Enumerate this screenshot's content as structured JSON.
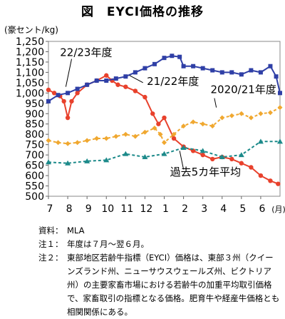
{
  "title": "図　EYCI価格の推移",
  "unit_label": "(豪セント/kg)",
  "notes": [
    {
      "label": "資料：",
      "text": "MLA"
    },
    {
      "label": "注１：",
      "text": "年度は７月～翌６月。"
    },
    {
      "label": "注２：",
      "text": "東部地区若齢牛指標（EYCI）価格は、東部３州（クイーンズランド州、ニューサウスウェールズ州、ビクトリア州）の主要家畜市場における若齢牛の加重平均取引価格で、家畜取引の指標となる価格。肥育牛や経産牛価格とも相関関係にある。"
    }
  ],
  "chart_data": {
    "type": "line",
    "ylim": [
      500,
      1250
    ],
    "yticks": [
      500,
      550,
      600,
      650,
      700,
      750,
      800,
      850,
      900,
      950,
      1000,
      1050,
      1100,
      1150,
      1200,
      1250
    ],
    "ytick_labels": [
      "500",
      "550",
      "600",
      "650",
      "700",
      "750",
      "800",
      "850",
      "900",
      "950",
      "1,000",
      "1,050",
      "1,100",
      "1,150",
      "1,200",
      "1,250"
    ],
    "xlim": [
      0,
      12
    ],
    "xticks": [
      0,
      1,
      2,
      3,
      4,
      5,
      6,
      7,
      8,
      9,
      10,
      11
    ],
    "xtick_labels": [
      "7",
      "8",
      "9",
      "10",
      "11",
      "12",
      "1",
      "2",
      "3",
      "4",
      "5",
      "6"
    ],
    "xunit": "(月)",
    "series": [
      {
        "name": "22/23年度",
        "color": "#e8412c",
        "marker": "circle",
        "x": [
          0.0,
          0.3,
          0.6,
          0.8,
          1.0,
          1.2,
          1.5,
          2.0,
          2.5,
          3.0,
          3.3,
          3.6,
          4.0,
          4.5,
          5.0,
          5.4,
          5.7,
          6.0,
          6.5,
          7.0,
          7.5,
          8.0,
          8.5,
          9.0,
          9.5,
          10.0,
          10.5,
          11.0,
          11.5,
          11.9
        ],
        "y": [
          1015,
          1000,
          985,
          960,
          880,
          960,
          1000,
          1040,
          1060,
          1085,
          1060,
          1040,
          1030,
          1010,
          980,
          900,
          850,
          880,
          780,
          740,
          720,
          700,
          680,
          690,
          680,
          660,
          640,
          600,
          575,
          560
        ]
      },
      {
        "name": "21/22年度",
        "color": "#2f3fa6",
        "marker": "square",
        "x": [
          0.0,
          0.5,
          1.0,
          1.5,
          2.0,
          2.5,
          3.0,
          3.5,
          4.0,
          4.5,
          5.0,
          5.5,
          6.0,
          6.4,
          6.8,
          7.0,
          7.5,
          8.0,
          8.5,
          9.0,
          9.5,
          10.0,
          10.5,
          11.0,
          11.5,
          11.8,
          12.0
        ],
        "y": [
          960,
          990,
          1000,
          1020,
          1040,
          1060,
          1060,
          1070,
          1080,
          1100,
          1120,
          1140,
          1170,
          1180,
          1175,
          1130,
          1130,
          1120,
          1110,
          1100,
          1100,
          1090,
          1110,
          1100,
          1130,
          1080,
          1000
        ]
      },
      {
        "name": "2020/21年度",
        "color": "#f0a830",
        "marker": "diamond",
        "x": [
          0.0,
          0.5,
          1.0,
          1.5,
          2.0,
          2.5,
          3.0,
          3.5,
          4.0,
          4.5,
          5.0,
          5.5,
          5.8,
          6.0,
          6.5,
          7.0,
          7.5,
          8.0,
          8.5,
          9.0,
          9.5,
          10.0,
          10.5,
          11.0,
          11.5,
          12.0
        ],
        "y": [
          770,
          760,
          755,
          760,
          770,
          780,
          780,
          790,
          800,
          790,
          810,
          830,
          800,
          760,
          800,
          840,
          860,
          850,
          840,
          880,
          890,
          900,
          880,
          900,
          905,
          930
        ]
      },
      {
        "name": "過去5カ年平均",
        "color": "#1c8a8a",
        "marker": "triangle",
        "x": [
          0,
          1,
          2,
          3,
          4,
          5,
          6,
          7,
          8,
          9,
          10,
          11,
          12
        ],
        "y": [
          665,
          660,
          670,
          675,
          705,
          690,
          705,
          735,
          720,
          690,
          700,
          765,
          765
        ]
      }
    ],
    "annotations": [
      {
        "text": "22/23年度",
        "x": 0.6,
        "y": 1180
      },
      {
        "text": "21/22年度",
        "x": 5.1,
        "y": 1040
      },
      {
        "text": "2020/21年度",
        "x": 8.4,
        "y": 1000
      },
      {
        "text": "過去5カ年平均",
        "x": 6.3,
        "y": 600
      }
    ]
  }
}
